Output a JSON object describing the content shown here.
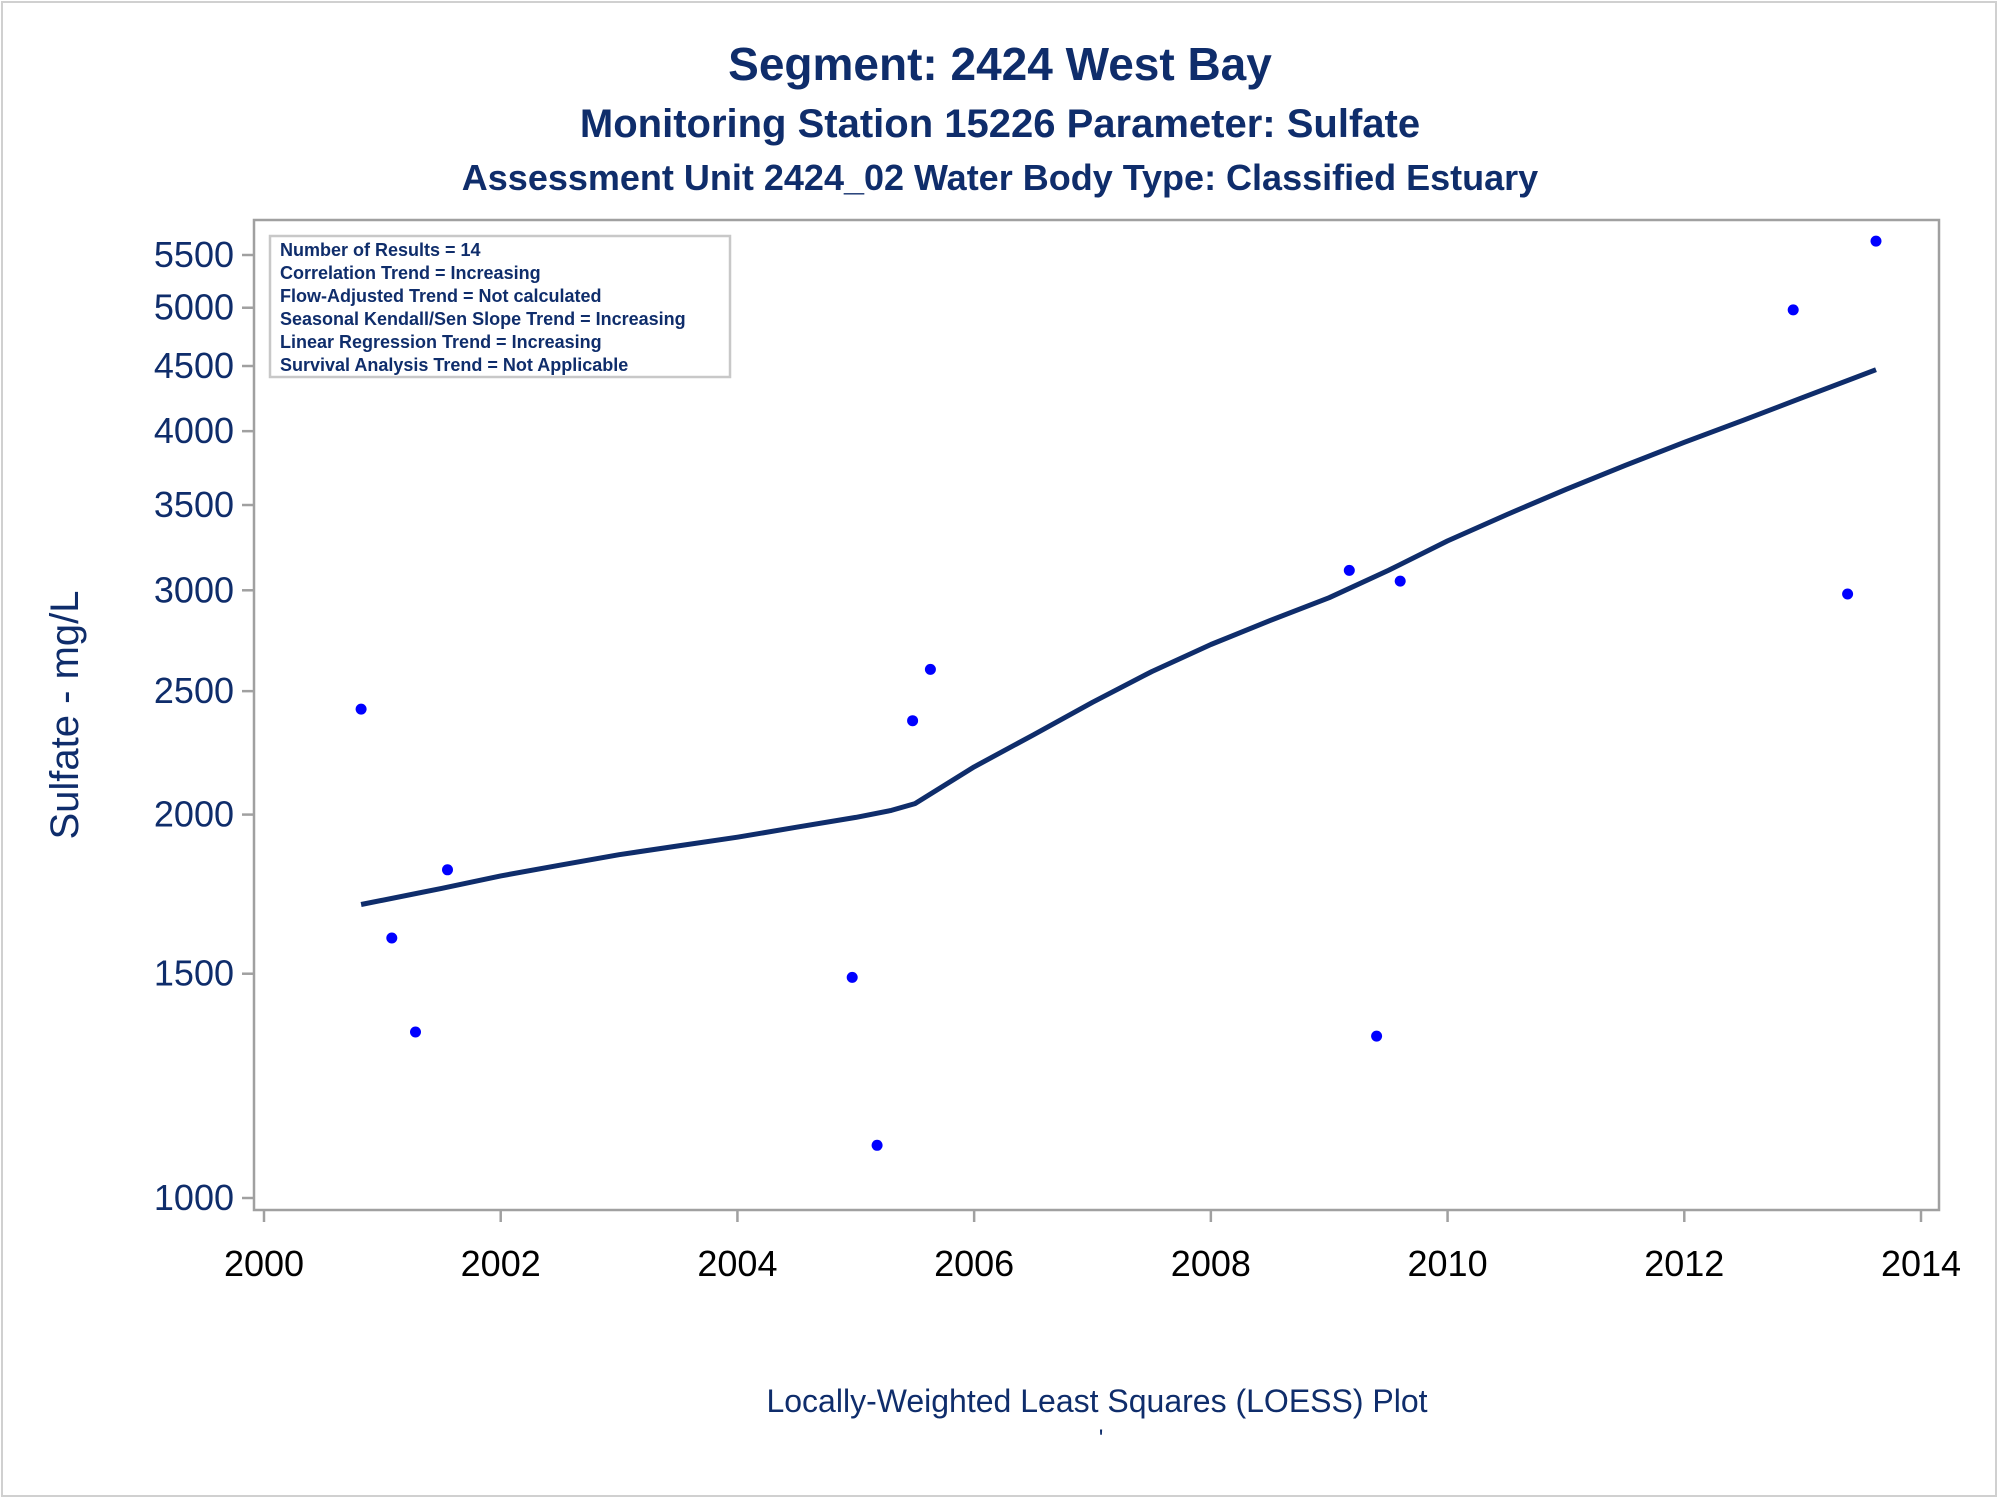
{
  "titles": {
    "line1": "Segment: 2424  West Bay",
    "line2": "Monitoring Station 15226 Parameter: Sulfate",
    "line3": "Assessment Unit 2424_02   Water Body Type: Classified Estuary"
  },
  "stats_box": [
    "Number of Results = 14",
    "Correlation Trend = Increasing",
    "Flow-Adjusted Trend = Not calculated",
    "Seasonal Kendall/Sen Slope Trend = Increasing",
    "Linear Regression Trend = Increasing",
    "Survival Analysis Trend = Not Applicable"
  ],
  "footnote": "'",
  "colors": {
    "text": "#0f2d6b",
    "points": "#0000ff",
    "loess_line": "#0f2d6b",
    "axis_frame": "#a0a0a0",
    "legend_border": "#c8c8c8"
  },
  "chart_data": {
    "type": "scatter",
    "title": "Segment: 2424  West Bay",
    "xlabel": "Locally-Weighted Least Squares (LOESS) Plot",
    "ylabel": "Sulfate - mg/L",
    "y_scale": "log",
    "xlim": [
      2000,
      2014
    ],
    "ylim": [
      1000,
      5800
    ],
    "x_ticks": [
      2000,
      2002,
      2004,
      2006,
      2008,
      2010,
      2012,
      2014
    ],
    "y_ticks": [
      1000,
      1500,
      2000,
      2500,
      3000,
      3500,
      4000,
      4500,
      5000,
      5500
    ],
    "grid": false,
    "legend": "top-left",
    "series": [
      {
        "kind": "points",
        "x": [
          2000.82,
          2001.08,
          2001.28,
          2001.55,
          2004.97,
          2005.18,
          2005.48,
          2005.63,
          2009.17,
          2009.4,
          2009.6,
          2012.92,
          2013.38,
          2013.62
        ],
        "y": [
          2420,
          1600,
          1350,
          1810,
          1490,
          1100,
          2370,
          2600,
          3110,
          1340,
          3050,
          4980,
          2980,
          5640
        ]
      },
      {
        "kind": "loess",
        "x": [
          2000.82,
          2001.5,
          2002.0,
          2002.5,
          2003.0,
          2003.5,
          2004.0,
          2004.5,
          2005.0,
          2005.3,
          2005.5,
          2006.0,
          2006.5,
          2007.0,
          2007.5,
          2008.0,
          2008.5,
          2009.0,
          2009.5,
          2010.0,
          2010.5,
          2011.0,
          2011.5,
          2012.0,
          2012.5,
          2013.0,
          2013.62
        ],
        "y": [
          1700,
          1750,
          1790,
          1825,
          1860,
          1890,
          1920,
          1955,
          1990,
          2015,
          2040,
          2180,
          2310,
          2450,
          2590,
          2720,
          2840,
          2960,
          3110,
          3280,
          3440,
          3600,
          3760,
          3920,
          4080,
          4250,
          4470
        ]
      }
    ]
  }
}
